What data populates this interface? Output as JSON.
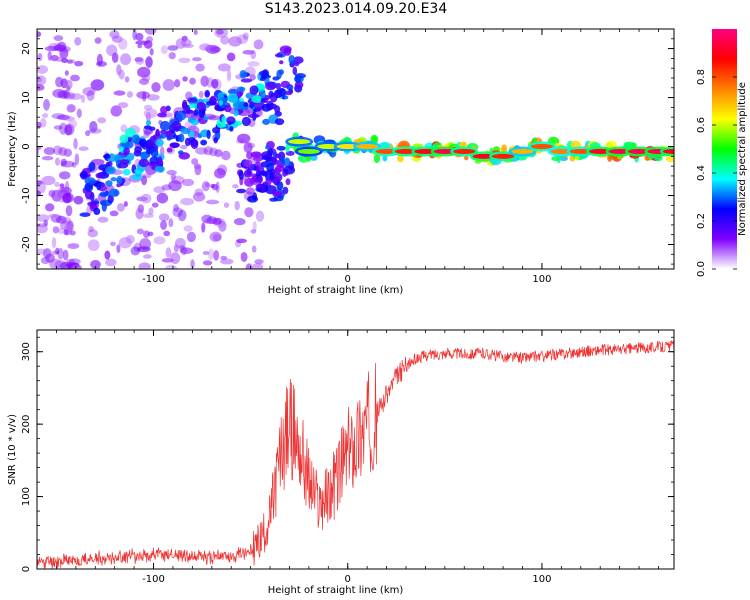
{
  "title": "S143.2023.014.09.20.E34",
  "chart_data": [
    {
      "type": "heatmap",
      "title": "",
      "xlabel": "Height of straight line (km)",
      "ylabel": "Frequency (Hz)",
      "xlim": [
        -160,
        168
      ],
      "ylim": [
        -25,
        24
      ],
      "xticks": [
        -100,
        0,
        100
      ],
      "xtick_labels": [
        "-100",
        "0",
        "100"
      ],
      "yticks": [
        -20,
        -10,
        0,
        10,
        20
      ],
      "ytick_labels": [
        "-20",
        "-10",
        "0",
        "10",
        "20"
      ],
      "colormap": [
        "#ffffff",
        "#7f00ff",
        "#0000ff",
        "#00ffff",
        "#00ff00",
        "#ffff00",
        "#ff8000",
        "#ff0000",
        "#ff0080"
      ],
      "colorbar": {
        "label": "Normalized spectral amplitude",
        "range": [
          0,
          1
        ],
        "ticks": [
          0.0,
          0.2,
          0.4,
          0.6,
          0.8
        ],
        "tick_labels": [
          "0.0",
          "0.2",
          "0.4",
          "0.6",
          "0.8"
        ]
      },
      "ridge": [
        {
          "x": -130,
          "y": -9,
          "a": 0.3
        },
        {
          "x": -120,
          "y": -6,
          "a": 0.35
        },
        {
          "x": -110,
          "y": -2,
          "a": 0.4
        },
        {
          "x": -100,
          "y": 0,
          "a": 0.35
        },
        {
          "x": -90,
          "y": 3,
          "a": 0.3
        },
        {
          "x": -80,
          "y": 5,
          "a": 0.4
        },
        {
          "x": -70,
          "y": 6,
          "a": 0.35
        },
        {
          "x": -60,
          "y": 8,
          "a": 0.4
        },
        {
          "x": -50,
          "y": 10,
          "a": 0.4
        },
        {
          "x": -40,
          "y": 10,
          "a": 0.35
        },
        {
          "x": -30,
          "y": 15,
          "a": 0.3
        },
        {
          "x": -50,
          "y": -6,
          "a": 0.25
        },
        {
          "x": -40,
          "y": -4,
          "a": 0.3
        },
        {
          "x": -35,
          "y": -6,
          "a": 0.3
        },
        {
          "x": -25,
          "y": 1,
          "a": 0.6
        },
        {
          "x": -20,
          "y": -1,
          "a": 0.55
        },
        {
          "x": -10,
          "y": 0,
          "a": 0.6
        },
        {
          "x": 0,
          "y": 0,
          "a": 0.65
        },
        {
          "x": 10,
          "y": 0,
          "a": 0.7
        },
        {
          "x": 20,
          "y": -1,
          "a": 0.8
        },
        {
          "x": 30,
          "y": -1,
          "a": 0.85
        },
        {
          "x": 40,
          "y": -1,
          "a": 0.9
        },
        {
          "x": 50,
          "y": -1,
          "a": 0.95
        },
        {
          "x": 60,
          "y": -1,
          "a": 0.85
        },
        {
          "x": 70,
          "y": -2,
          "a": 0.9
        },
        {
          "x": 80,
          "y": -2,
          "a": 0.85
        },
        {
          "x": 90,
          "y": -1,
          "a": 0.7
        },
        {
          "x": 100,
          "y": 0,
          "a": 0.8
        },
        {
          "x": 110,
          "y": -1,
          "a": 0.75
        },
        {
          "x": 120,
          "y": -1,
          "a": 0.8
        },
        {
          "x": 130,
          "y": -1,
          "a": 0.9
        },
        {
          "x": 140,
          "y": -1,
          "a": 0.95
        },
        {
          "x": 150,
          "y": -1,
          "a": 0.95
        },
        {
          "x": 160,
          "y": -1,
          "a": 0.95
        },
        {
          "x": 168,
          "y": -1,
          "a": 0.9
        }
      ]
    },
    {
      "type": "line",
      "title": "",
      "xlabel": "Height of straight line (km)",
      "ylabel": "SNR (10 * v/v)",
      "xlim": [
        -160,
        168
      ],
      "ylim": [
        0,
        330
      ],
      "xticks": [
        -100,
        0,
        100
      ],
      "xtick_labels": [
        "-100",
        "0",
        "100"
      ],
      "yticks": [
        0,
        100,
        200,
        300
      ],
      "ytick_labels": [
        "0",
        "100",
        "200",
        "300"
      ],
      "color": "#ee3333",
      "x": [
        -160,
        -150,
        -140,
        -130,
        -120,
        -110,
        -100,
        -90,
        -80,
        -70,
        -60,
        -50,
        -45,
        -40,
        -35,
        -30,
        -25,
        -20,
        -15,
        -10,
        -5,
        0,
        5,
        10,
        15,
        20,
        25,
        30,
        35,
        40,
        50,
        60,
        70,
        80,
        90,
        100,
        110,
        120,
        130,
        140,
        150,
        160,
        168
      ],
      "y": [
        10,
        11,
        12,
        14,
        16,
        18,
        20,
        20,
        18,
        16,
        18,
        25,
        40,
        70,
        150,
        200,
        170,
        120,
        90,
        100,
        130,
        160,
        180,
        200,
        215,
        240,
        265,
        280,
        290,
        295,
        298,
        297,
        298,
        293,
        292,
        294,
        297,
        300,
        302,
        303,
        305,
        307,
        308
      ]
    }
  ]
}
